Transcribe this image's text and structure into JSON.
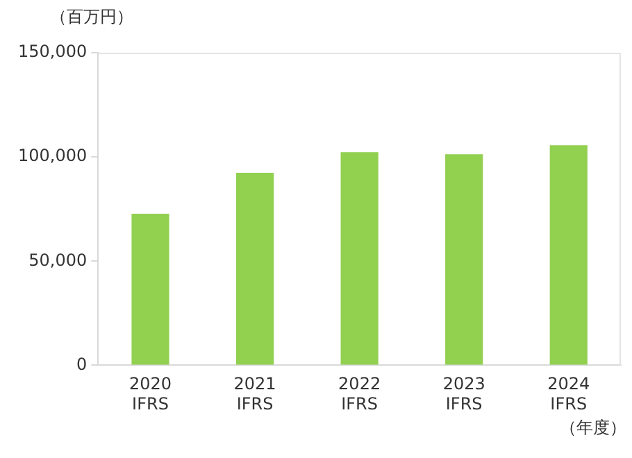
{
  "chart_data": {
    "type": "bar",
    "ylabel": "（百万円）",
    "xlabel": "（年度）",
    "categories": [
      "2020\nIFRS",
      "2021\nIFRS",
      "2022\nIFRS",
      "2023\nIFRS",
      "2024\nIFRS"
    ],
    "values": [
      72700,
      92400,
      102300,
      101300,
      105600
    ],
    "color": "#92d050",
    "ylim": [
      0,
      150000
    ],
    "yticks": [
      {
        "value": 0,
        "label": "0"
      },
      {
        "value": 50000,
        "label": "50,000"
      },
      {
        "value": 100000,
        "label": "100,000"
      },
      {
        "value": 150000,
        "label": "150,000"
      }
    ],
    "grid": false,
    "legend": false
  }
}
